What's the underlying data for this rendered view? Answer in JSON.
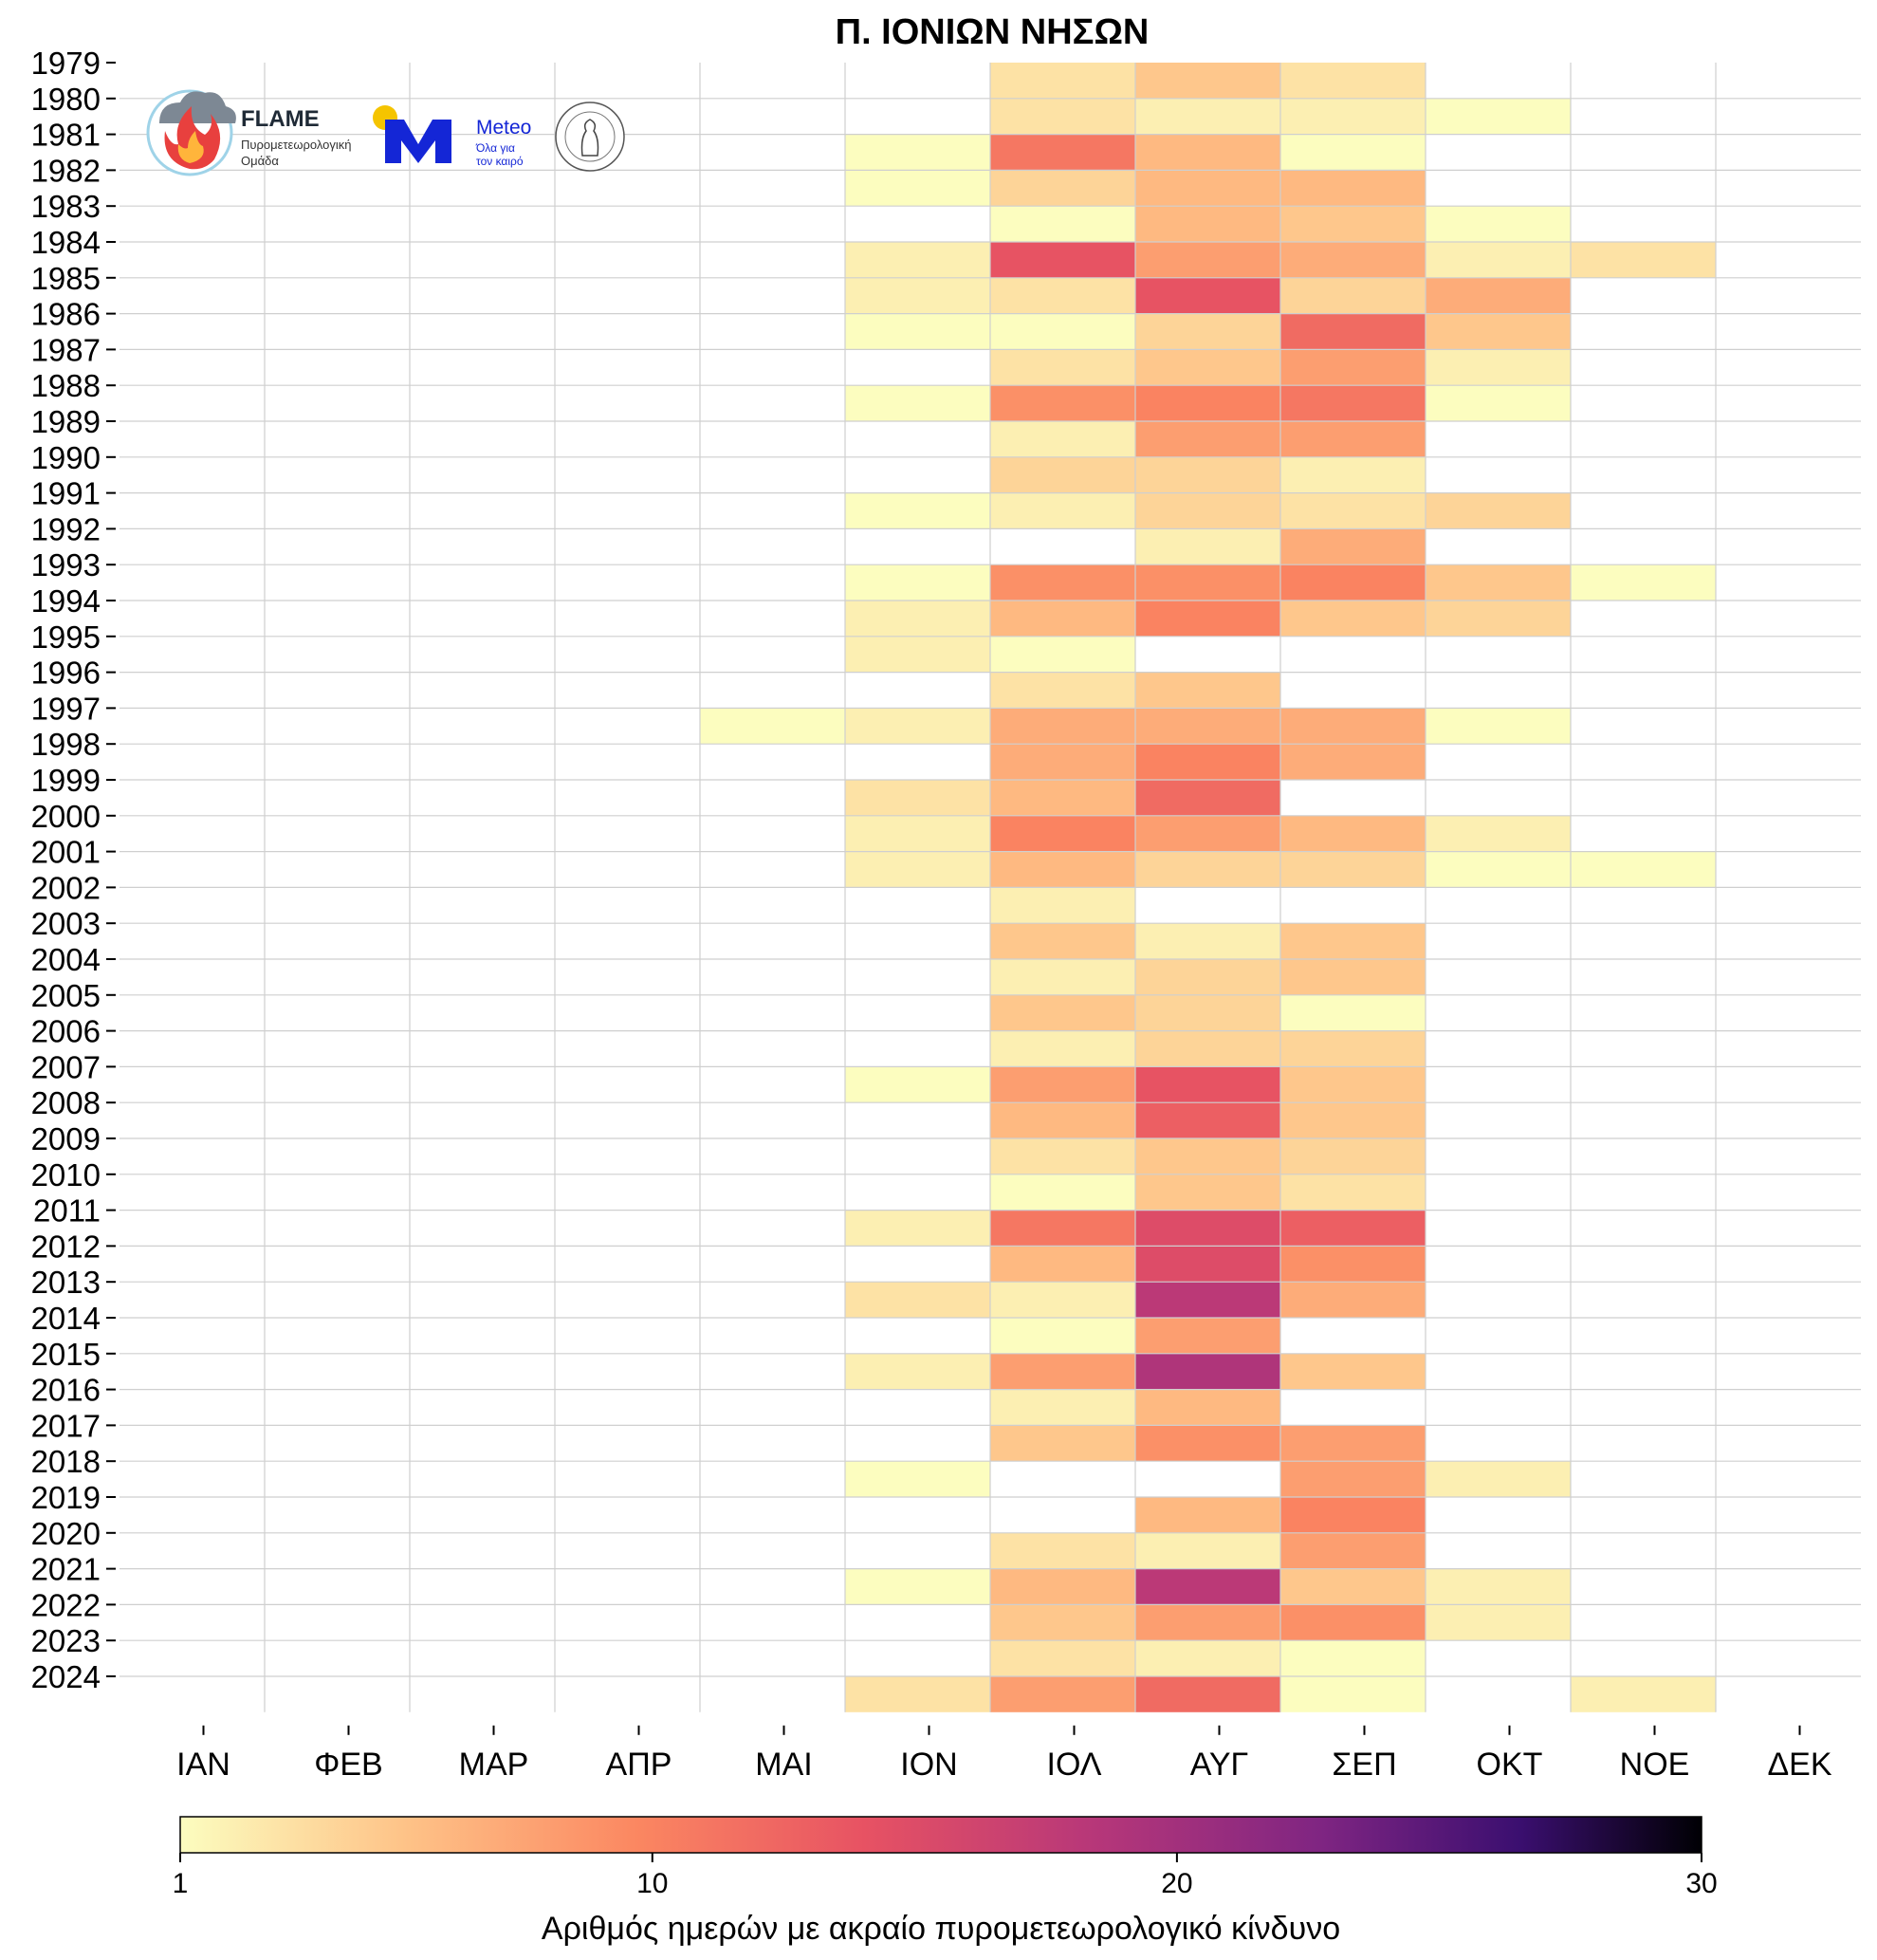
{
  "chart_data": {
    "type": "heatmap",
    "title": "Π. ΙΟΝΙΩΝ ΝΗΣΩΝ",
    "x_categories": [
      "ΙΑΝ",
      "ΦΕΒ",
      "ΜΑΡ",
      "ΑΠΡ",
      "ΜΑΙ",
      "ΙΟΝ",
      "ΙΟΛ",
      "ΑΥΓ",
      "ΣΕΠ",
      "ΟΚΤ",
      "ΝΟΕ",
      "ΔΕΚ"
    ],
    "y_categories": [
      "1979",
      "1980",
      "1981",
      "1982",
      "1983",
      "1984",
      "1985",
      "1986",
      "1987",
      "1988",
      "1989",
      "1990",
      "1991",
      "1992",
      "1993",
      "1994",
      "1995",
      "1996",
      "1997",
      "1998",
      "1999",
      "2000",
      "2001",
      "2002",
      "2003",
      "2004",
      "2005",
      "2006",
      "2007",
      "2008",
      "2009",
      "2010",
      "2011",
      "2012",
      "2013",
      "2014",
      "2015",
      "2016",
      "2017",
      "2018",
      "2019",
      "2020",
      "2021",
      "2022",
      "2023",
      "2024"
    ],
    "cells_note": "one row per drawn band (46 bands, rows top to bottom); 0 = no days (blank)",
    "values": [
      [
        0,
        0,
        0,
        0,
        0,
        0,
        3,
        5,
        3,
        0,
        0,
        0
      ],
      [
        0,
        0,
        0,
        0,
        0,
        0,
        3,
        2,
        2,
        1,
        0,
        0
      ],
      [
        0,
        0,
        0,
        0,
        0,
        1,
        11,
        6,
        1,
        0,
        0,
        0
      ],
      [
        0,
        0,
        0,
        0,
        0,
        1,
        4,
        6,
        6,
        0,
        0,
        0
      ],
      [
        0,
        0,
        0,
        0,
        0,
        0,
        1,
        6,
        5,
        1,
        0,
        0
      ],
      [
        0,
        0,
        0,
        0,
        0,
        2,
        14,
        8,
        7,
        2,
        3,
        0
      ],
      [
        0,
        0,
        0,
        0,
        0,
        2,
        3,
        14,
        4,
        7,
        0,
        0
      ],
      [
        0,
        0,
        0,
        0,
        0,
        1,
        1,
        4,
        12,
        5,
        0,
        0
      ],
      [
        0,
        0,
        0,
        0,
        0,
        0,
        3,
        5,
        8,
        2,
        0,
        0
      ],
      [
        0,
        0,
        0,
        0,
        0,
        1,
        9,
        10,
        11,
        1,
        0,
        0
      ],
      [
        0,
        0,
        0,
        0,
        0,
        0,
        2,
        8,
        8,
        0,
        0,
        0
      ],
      [
        0,
        0,
        0,
        0,
        0,
        0,
        4,
        4,
        2,
        0,
        0,
        0
      ],
      [
        0,
        0,
        0,
        0,
        0,
        1,
        2,
        4,
        3,
        4,
        0,
        0
      ],
      [
        0,
        0,
        0,
        0,
        0,
        0,
        0,
        2,
        7,
        0,
        0,
        0
      ],
      [
        0,
        0,
        0,
        0,
        0,
        1,
        9,
        9,
        10,
        5,
        1,
        0
      ],
      [
        0,
        0,
        0,
        0,
        0,
        2,
        6,
        10,
        5,
        4,
        0,
        0
      ],
      [
        0,
        0,
        0,
        0,
        0,
        2,
        1,
        0,
        0,
        0,
        0,
        0
      ],
      [
        0,
        0,
        0,
        0,
        0,
        0,
        3,
        5,
        0,
        0,
        0,
        0
      ],
      [
        0,
        0,
        0,
        0,
        1,
        2,
        7,
        7,
        7,
        1,
        0,
        0
      ],
      [
        0,
        0,
        0,
        0,
        0,
        0,
        7,
        10,
        7,
        0,
        0,
        0
      ],
      [
        0,
        0,
        0,
        0,
        0,
        3,
        6,
        12,
        0,
        0,
        0,
        0
      ],
      [
        0,
        0,
        0,
        0,
        0,
        2,
        10,
        8,
        6,
        2,
        0,
        0
      ],
      [
        0,
        0,
        0,
        0,
        0,
        2,
        6,
        4,
        4,
        1,
        1,
        0
      ],
      [
        0,
        0,
        0,
        0,
        0,
        0,
        2,
        0,
        0,
        0,
        0,
        0
      ],
      [
        0,
        0,
        0,
        0,
        0,
        0,
        5,
        2,
        5,
        0,
        0,
        0
      ],
      [
        0,
        0,
        0,
        0,
        0,
        0,
        2,
        4,
        5,
        0,
        0,
        0
      ],
      [
        0,
        0,
        0,
        0,
        0,
        0,
        5,
        4,
        1,
        0,
        0,
        0
      ],
      [
        0,
        0,
        0,
        0,
        0,
        0,
        2,
        4,
        4,
        0,
        0,
        0
      ],
      [
        0,
        0,
        0,
        0,
        0,
        1,
        8,
        14,
        5,
        0,
        0,
        0
      ],
      [
        0,
        0,
        0,
        0,
        0,
        0,
        6,
        13,
        5,
        0,
        0,
        0
      ],
      [
        0,
        0,
        0,
        0,
        0,
        0,
        3,
        5,
        4,
        0,
        0,
        0
      ],
      [
        0,
        0,
        0,
        0,
        0,
        0,
        1,
        5,
        3,
        0,
        0,
        0
      ],
      [
        0,
        0,
        0,
        0,
        0,
        2,
        11,
        15,
        13,
        0,
        0,
        0
      ],
      [
        0,
        0,
        0,
        0,
        0,
        0,
        6,
        15,
        9,
        0,
        0,
        0
      ],
      [
        0,
        0,
        0,
        0,
        0,
        3,
        2,
        18,
        7,
        0,
        0,
        0
      ],
      [
        0,
        0,
        0,
        0,
        0,
        0,
        1,
        8,
        0,
        0,
        0,
        0
      ],
      [
        0,
        0,
        0,
        0,
        0,
        2,
        8,
        19,
        5,
        0,
        0,
        0
      ],
      [
        0,
        0,
        0,
        0,
        0,
        0,
        2,
        6,
        0,
        0,
        0,
        0
      ],
      [
        0,
        0,
        0,
        0,
        0,
        0,
        5,
        9,
        8,
        0,
        0,
        0
      ],
      [
        0,
        0,
        0,
        0,
        0,
        1,
        0,
        0,
        8,
        2,
        0,
        0
      ],
      [
        0,
        0,
        0,
        0,
        0,
        0,
        0,
        6,
        10,
        0,
        0,
        0
      ],
      [
        0,
        0,
        0,
        0,
        0,
        0,
        3,
        2,
        8,
        0,
        0,
        0
      ],
      [
        0,
        0,
        0,
        0,
        0,
        1,
        6,
        18,
        5,
        2,
        0,
        0
      ],
      [
        0,
        0,
        0,
        0,
        0,
        0,
        5,
        8,
        9,
        2,
        0,
        0
      ],
      [
        0,
        0,
        0,
        0,
        0,
        0,
        3,
        2,
        1,
        0,
        0,
        0
      ],
      [
        0,
        0,
        0,
        0,
        0,
        3,
        8,
        12,
        1,
        0,
        2,
        0
      ]
    ],
    "colorbar": {
      "label": "Αριθμός ημερών με ακραίο πυρομετεωρολογικό κίνδυνο",
      "range": [
        1,
        30
      ],
      "ticks": [
        "1",
        "10",
        "20",
        "30"
      ],
      "colormap": "magma_r"
    }
  },
  "logos": {
    "flame_name": "FLAME",
    "flame_sub1": "Πυρομετεωρολογική",
    "flame_sub2": "Ομάδα",
    "meteo_name": "Meteo",
    "meteo_sub1": "Όλα για",
    "meteo_sub2": "τον καιρό",
    "seal_text": "ΕΘΝΙΚΟ ΑΣΤΕΡΟΣΚΟΠΕΙΟ ΑΘΗΝΩΝ"
  }
}
